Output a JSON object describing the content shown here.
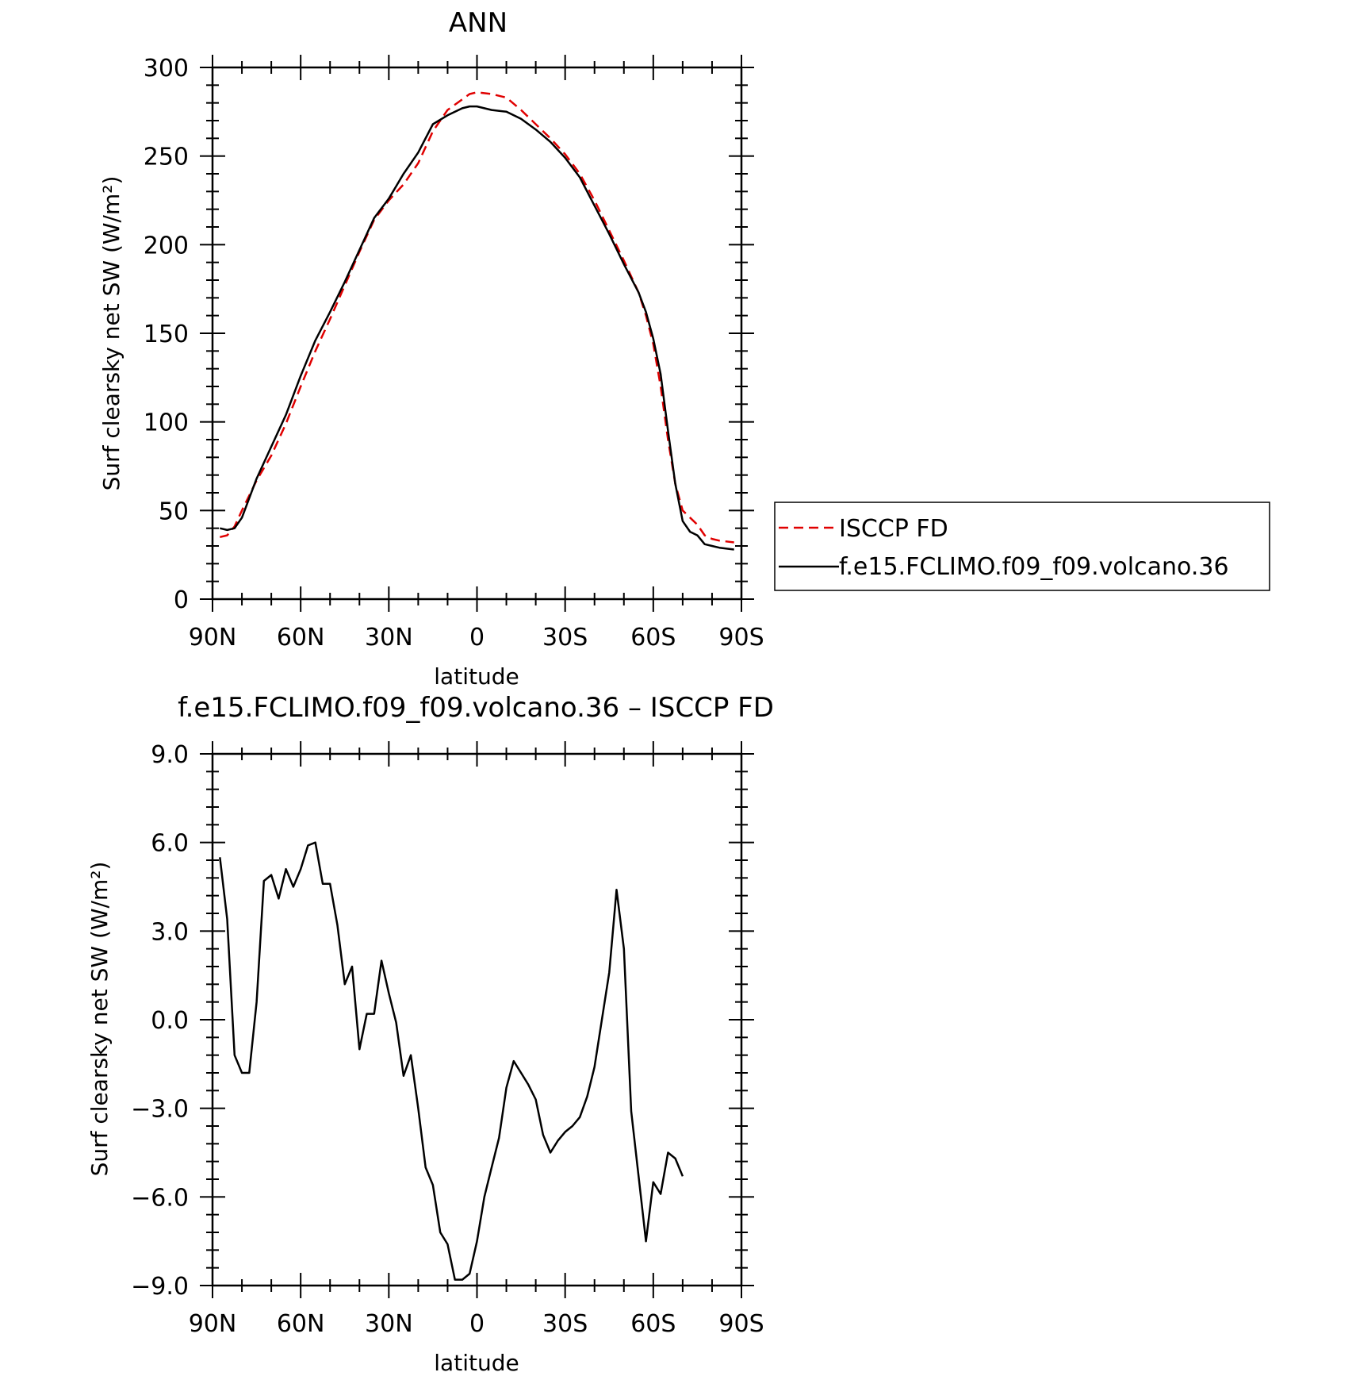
{
  "chart_data": [
    {
      "type": "line",
      "title": "ANN",
      "xlabel": "latitude",
      "ylabel": "Surf clearsky net SW (W/m²)",
      "xlim": [
        90,
        -90
      ],
      "ylim": [
        0,
        300
      ],
      "x_ticks": [
        {
          "value": 90,
          "label": "90N"
        },
        {
          "value": 60,
          "label": "60N"
        },
        {
          "value": 30,
          "label": "30N"
        },
        {
          "value": 0,
          "label": "0"
        },
        {
          "value": -30,
          "label": "30S"
        },
        {
          "value": -60,
          "label": "60S"
        },
        {
          "value": -90,
          "label": "90S"
        }
      ],
      "y_ticks": [
        {
          "value": 0,
          "label": "0"
        },
        {
          "value": 50,
          "label": "50"
        },
        {
          "value": 100,
          "label": "100"
        },
        {
          "value": 150,
          "label": "150"
        },
        {
          "value": 200,
          "label": "200"
        },
        {
          "value": 250,
          "label": "250"
        },
        {
          "value": 300,
          "label": "300"
        }
      ],
      "legend_position": "right",
      "series": [
        {
          "name": "ISCCP FD",
          "color": "#e00000",
          "dash": "dashed",
          "points": [
            [
              87.5,
              35
            ],
            [
              85,
              36
            ],
            [
              82.5,
              41
            ],
            [
              80,
              50
            ],
            [
              75,
              67
            ],
            [
              70,
              81
            ],
            [
              65,
              99
            ],
            [
              60,
              120
            ],
            [
              55,
              140
            ],
            [
              50,
              158
            ],
            [
              45,
              177
            ],
            [
              40,
              196
            ],
            [
              35,
              214
            ],
            [
              30,
              225
            ],
            [
              25,
              234
            ],
            [
              20,
              246
            ],
            [
              15,
              264
            ],
            [
              10,
              276
            ],
            [
              5,
              282
            ],
            [
              2.5,
              285
            ],
            [
              0,
              286
            ],
            [
              -5,
              285
            ],
            [
              -10,
              283
            ],
            [
              -15,
              276
            ],
            [
              -20,
              268
            ],
            [
              -25,
              260
            ],
            [
              -30,
              251
            ],
            [
              -35,
              240
            ],
            [
              -40,
              225
            ],
            [
              -45,
              208
            ],
            [
              -50,
              191
            ],
            [
              -55,
              173
            ],
            [
              -57.5,
              160
            ],
            [
              -60,
              144
            ],
            [
              -62.5,
              120
            ],
            [
              -65,
              90
            ],
            [
              -67.5,
              65
            ],
            [
              -70,
              50
            ],
            [
              -72.5,
              46
            ],
            [
              -75,
              42
            ],
            [
              -77.5,
              36
            ],
            [
              -80,
              34
            ],
            [
              -82.5,
              33
            ],
            [
              -87.5,
              32
            ]
          ]
        },
        {
          "name": "f.e15.FCLIMO.f09_f09.volcano.36",
          "color": "#000000",
          "dash": "solid",
          "points": [
            [
              87.5,
              40
            ],
            [
              85,
              39
            ],
            [
              82.5,
              40
            ],
            [
              80,
              46
            ],
            [
              75,
              68
            ],
            [
              70,
              86
            ],
            [
              65,
              104
            ],
            [
              60,
              126
            ],
            [
              55,
              146
            ],
            [
              50,
              162
            ],
            [
              45,
              179
            ],
            [
              40,
              197
            ],
            [
              35,
              215
            ],
            [
              30,
              226
            ],
            [
              25,
              240
            ],
            [
              20,
              252
            ],
            [
              15,
              268
            ],
            [
              10,
              273
            ],
            [
              5,
              277
            ],
            [
              2.5,
              278
            ],
            [
              0,
              278
            ],
            [
              -5,
              276
            ],
            [
              -10,
              275
            ],
            [
              -15,
              271
            ],
            [
              -20,
              265
            ],
            [
              -25,
              258
            ],
            [
              -30,
              249
            ],
            [
              -35,
              238
            ],
            [
              -40,
              222
            ],
            [
              -45,
              206
            ],
            [
              -50,
              189
            ],
            [
              -55,
              173
            ],
            [
              -57.5,
              162
            ],
            [
              -60,
              147
            ],
            [
              -62.5,
              127
            ],
            [
              -65,
              95
            ],
            [
              -67.5,
              65
            ],
            [
              -70,
              44
            ],
            [
              -72.5,
              38
            ],
            [
              -75,
              36
            ],
            [
              -77.5,
              31
            ],
            [
              -80,
              30
            ],
            [
              -82.5,
              29
            ],
            [
              -87.5,
              28
            ]
          ]
        }
      ]
    },
    {
      "type": "line",
      "title": "f.e15.FCLIMO.f09_f09.volcano.36 – ISCCP FD",
      "xlabel": "latitude",
      "ylabel": "Surf clearsky net SW (W/m²)",
      "xlim": [
        90,
        -90
      ],
      "ylim": [
        -9,
        9
      ],
      "x_ticks": [
        {
          "value": 90,
          "label": "90N"
        },
        {
          "value": 60,
          "label": "60N"
        },
        {
          "value": 30,
          "label": "30N"
        },
        {
          "value": 0,
          "label": "0"
        },
        {
          "value": -30,
          "label": "30S"
        },
        {
          "value": -60,
          "label": "60S"
        },
        {
          "value": -90,
          "label": "90S"
        }
      ],
      "y_ticks": [
        {
          "value": -9,
          "label": "−9.0"
        },
        {
          "value": -6,
          "label": "−6.0"
        },
        {
          "value": -3,
          "label": "−3.0"
        },
        {
          "value": 0,
          "label": "0.0"
        },
        {
          "value": 3,
          "label": "3.0"
        },
        {
          "value": 6,
          "label": "6.0"
        },
        {
          "value": 9,
          "label": "9.0"
        }
      ],
      "series": [
        {
          "color": "#000000",
          "dash": "solid",
          "points": [
            [
              87.5,
              5.5
            ],
            [
              85,
              3.4
            ],
            [
              82.5,
              -1.2
            ],
            [
              80,
              -1.8
            ],
            [
              77.5,
              -1.8
            ],
            [
              75,
              0.6
            ],
            [
              72.5,
              4.7
            ],
            [
              70,
              4.9
            ],
            [
              67.5,
              4.1
            ],
            [
              65,
              5.1
            ],
            [
              62.5,
              4.5
            ],
            [
              60,
              5.1
            ],
            [
              57.5,
              5.9
            ],
            [
              55,
              6.0
            ],
            [
              52.5,
              4.6
            ],
            [
              50,
              4.6
            ],
            [
              47.5,
              3.2
            ],
            [
              45,
              1.2
            ],
            [
              42.5,
              1.8
            ],
            [
              40,
              -1.0
            ],
            [
              37.5,
              0.2
            ],
            [
              35,
              0.2
            ],
            [
              32.5,
              2.0
            ],
            [
              30,
              0.9
            ],
            [
              27.5,
              -0.1
            ],
            [
              25,
              -1.9
            ],
            [
              22.5,
              -1.2
            ],
            [
              20,
              -3.0
            ],
            [
              17.5,
              -5.0
            ],
            [
              15,
              -5.6
            ],
            [
              12.5,
              -7.2
            ],
            [
              10,
              -7.6
            ],
            [
              7.5,
              -8.8
            ],
            [
              5,
              -8.8
            ],
            [
              2.5,
              -8.6
            ],
            [
              0,
              -7.5
            ],
            [
              -2.5,
              -6.0
            ],
            [
              -5,
              -5.0
            ],
            [
              -7.5,
              -4.0
            ],
            [
              -10,
              -2.3
            ],
            [
              -12.5,
              -1.4
            ],
            [
              -15,
              -1.8
            ],
            [
              -17.5,
              -2.2
            ],
            [
              -20,
              -2.7
            ],
            [
              -22.5,
              -3.9
            ],
            [
              -25,
              -4.5
            ],
            [
              -27.5,
              -4.1
            ],
            [
              -30,
              -3.8
            ],
            [
              -32.5,
              -3.6
            ],
            [
              -35,
              -3.3
            ],
            [
              -37.5,
              -2.6
            ],
            [
              -40,
              -1.6
            ],
            [
              -42.5,
              0.0
            ],
            [
              -45,
              1.6
            ],
            [
              -47.5,
              4.4
            ],
            [
              -50,
              2.4
            ],
            [
              -52.5,
              -3.1
            ],
            [
              -55,
              -5.3
            ],
            [
              -57.5,
              -7.5
            ],
            [
              -60,
              -5.5
            ],
            [
              -62.5,
              -5.9
            ],
            [
              -65,
              -4.5
            ],
            [
              -67.5,
              -4.7
            ],
            [
              -70,
              -5.3
            ]
          ]
        }
      ]
    }
  ]
}
